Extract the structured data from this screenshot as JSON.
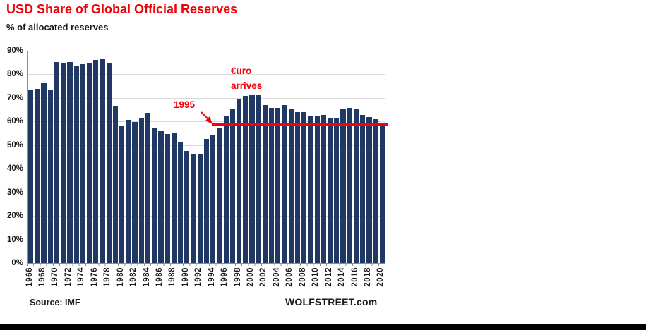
{
  "title": "USD Share of Global Official Reserves",
  "subtitle": "% of allocated reserves",
  "footer": {
    "source": "Source: IMF",
    "watermark": "WOLFSTREET.com"
  },
  "colors": {
    "bar": "#1f3864",
    "red": "#f50008",
    "grid": "#d9d9d9",
    "axis": "#8c8c8c",
    "text": "#1a1a1a",
    "bottom_bar": "#000000"
  },
  "annotations": {
    "ref_year_label": "1995",
    "euro_line1": "€uro",
    "euro_line2": "arrives"
  },
  "chart_data": {
    "type": "bar",
    "title": "USD Share of Global Official Reserves",
    "subtitle": "% of allocated reserves",
    "xlabel": "",
    "ylabel": "% of allocated reserves",
    "ylim": [
      0,
      90
    ],
    "y_ticks": [
      "0%",
      "10%",
      "20%",
      "30%",
      "40%",
      "50%",
      "60%",
      "70%",
      "80%",
      "90%"
    ],
    "x_tick_interval": 2,
    "grid": true,
    "legend": false,
    "ref_line": {
      "level": 58.6,
      "from_year": 1995,
      "label": "1995",
      "color": "#f50008"
    },
    "categories": [
      1966,
      1967,
      1968,
      1969,
      1970,
      1971,
      1972,
      1973,
      1974,
      1975,
      1976,
      1977,
      1978,
      1979,
      1980,
      1981,
      1982,
      1983,
      1984,
      1985,
      1986,
      1987,
      1988,
      1989,
      1990,
      1991,
      1992,
      1993,
      1994,
      1995,
      1996,
      1997,
      1998,
      1999,
      2000,
      2001,
      2002,
      2003,
      2004,
      2005,
      2006,
      2007,
      2008,
      2009,
      2010,
      2011,
      2012,
      2013,
      2014,
      2015,
      2016,
      2017,
      2018,
      2019,
      2020
    ],
    "values": [
      73.5,
      74.0,
      76.5,
      73.5,
      85.3,
      85.0,
      85.3,
      83.5,
      84.2,
      85.0,
      86.0,
      86.5,
      84.6,
      66.5,
      58.0,
      60.7,
      59.7,
      61.6,
      63.7,
      57.4,
      56.0,
      54.8,
      55.3,
      51.5,
      47.5,
      46.3,
      46.0,
      52.5,
      54.5,
      57.4,
      62.1,
      65.2,
      69.3,
      71.0,
      71.1,
      71.5,
      67.1,
      65.9,
      65.9,
      66.9,
      65.5,
      64.1,
      64.1,
      62.1,
      62.2,
      62.7,
      61.5,
      61.2,
      65.1,
      65.7,
      65.4,
      62.7,
      61.8,
      60.9,
      58.9
    ]
  }
}
